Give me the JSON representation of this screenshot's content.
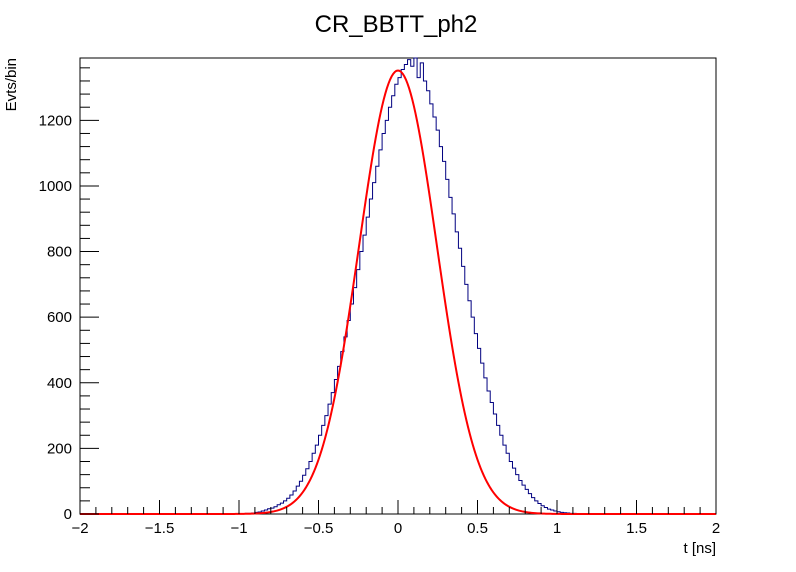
{
  "chart_data": {
    "type": "histogram",
    "title": "CR_BBTT_ph2",
    "xlabel": "t [ns]",
    "ylabel": "Evts/bin",
    "xlim": [
      -2,
      2
    ],
    "ylim": [
      0,
      1390
    ],
    "x_ticks": [
      -2,
      -1.5,
      -1,
      -0.5,
      0,
      0.5,
      1,
      1.5,
      2
    ],
    "x_tick_labels": [
      "−2",
      "−1.5",
      "−1",
      "−0.5",
      "0",
      "0.5",
      "1",
      "1.5",
      "2"
    ],
    "y_ticks": [
      0,
      200,
      400,
      600,
      800,
      1000,
      1200
    ],
    "y_tick_labels": [
      "0",
      "200",
      "400",
      "600",
      "800",
      "1000",
      "1200"
    ],
    "grid": false,
    "legend": "none",
    "histogram": {
      "name": "",
      "color": "#000080",
      "bin_width": 0.02,
      "x_start": -2,
      "values": [
        0,
        0,
        0,
        0,
        0,
        0,
        0,
        0,
        0,
        0,
        0,
        0,
        0,
        0,
        0,
        0,
        0,
        0,
        0,
        0,
        0,
        0,
        0,
        0,
        0,
        0,
        0,
        0,
        0,
        0,
        0,
        0,
        0,
        0,
        0,
        0,
        0,
        0,
        0,
        0,
        0,
        0,
        0,
        0,
        0,
        0,
        0,
        0,
        0,
        0,
        1,
        1,
        2,
        2,
        3,
        5,
        6,
        9,
        12,
        16,
        18,
        22,
        28,
        33,
        40,
        48,
        58,
        70,
        85,
        100,
        118,
        138,
        160,
        185,
        210,
        240,
        270,
        300,
        335,
        370,
        410,
        450,
        495,
        540,
        590,
        640,
        690,
        745,
        800,
        850,
        905,
        960,
        1010,
        1060,
        1110,
        1160,
        1200,
        1240,
        1275,
        1310,
        1330,
        1355,
        1370,
        1385,
        1365,
        1390,
        1330,
        1375,
        1320,
        1290,
        1250,
        1210,
        1170,
        1120,
        1075,
        1020,
        965,
        915,
        860,
        810,
        755,
        700,
        650,
        600,
        550,
        505,
        460,
        415,
        375,
        340,
        305,
        270,
        240,
        210,
        185,
        160,
        140,
        120,
        102,
        88,
        75,
        62,
        50,
        40,
        32,
        25,
        20,
        15,
        12,
        9,
        7,
        5,
        4,
        3,
        2,
        2,
        1,
        1,
        1,
        0,
        0,
        0,
        0,
        0,
        0,
        0,
        0,
        0,
        0,
        0,
        0,
        0,
        0,
        0,
        0,
        0,
        0,
        0,
        0,
        0,
        0,
        0,
        0,
        0,
        0,
        0,
        0,
        0,
        0,
        0,
        0,
        0,
        0,
        0,
        0,
        0,
        0,
        0,
        0,
        0
      ]
    },
    "fit": {
      "type": "gaussian",
      "color": "#ff0000",
      "amplitude": 1352,
      "mean": 0.0,
      "sigma": 0.244
    }
  }
}
